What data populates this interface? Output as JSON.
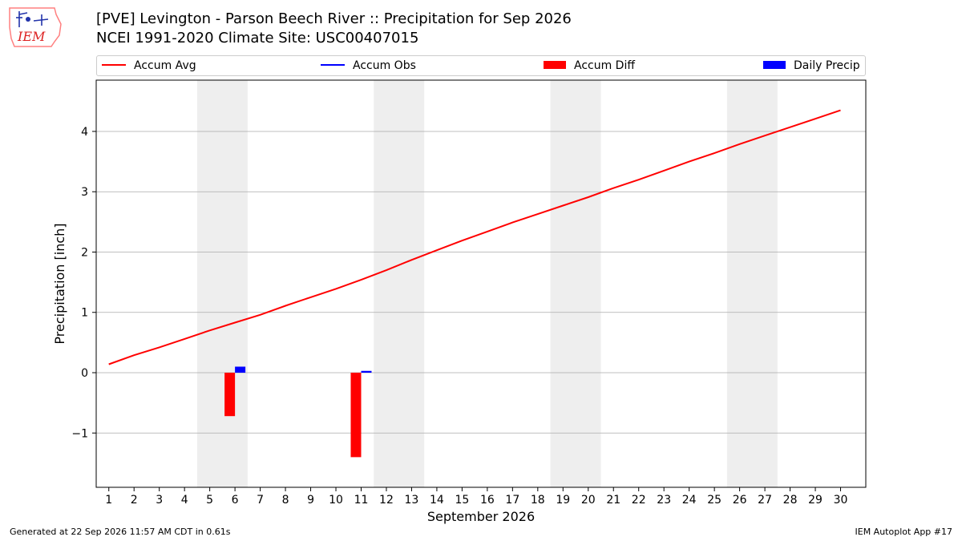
{
  "header": {
    "title_line1": "[PVE] Levington - Parson Beech River :: Precipitation for Sep 2026",
    "title_line2": "NCEI 1991-2020 Climate Site: USC00407015",
    "logo_text": "IEM"
  },
  "footer": {
    "generated": "Generated at 22 Sep 2026 11:57 AM CDT in 0.61s",
    "app": "IEM Autoplot App #17"
  },
  "legend": {
    "accum_avg": "Accum Avg",
    "accum_obs": "Accum Obs",
    "accum_diff": "Accum Diff",
    "daily_precip": "Daily Precip"
  },
  "colors": {
    "accum_avg": "#ff0000",
    "accum_obs": "#0000ff",
    "accum_diff": "#ff0000",
    "daily_precip": "#0000ff",
    "weekend_shade": "#eeeeee",
    "grid": "#aaaaaa"
  },
  "chart_data": {
    "type": "bar",
    "xlabel": "September 2026",
    "ylabel": "Precipitation [inch]",
    "xlim": [
      0.5,
      31
    ],
    "ylim": [
      -1.9,
      4.85
    ],
    "yticks": [
      -1,
      0,
      1,
      2,
      3,
      4
    ],
    "ytick_labels": [
      "−1",
      "0",
      "1",
      "2",
      "3",
      "4"
    ],
    "grid": "horizontal",
    "legend_position": "top",
    "days": [
      1,
      2,
      3,
      4,
      5,
      6,
      7,
      8,
      9,
      10,
      11,
      12,
      13,
      14,
      15,
      16,
      17,
      18,
      19,
      20,
      21,
      22,
      23,
      24,
      25,
      26,
      27,
      28,
      29,
      30
    ],
    "weekend_spans": [
      [
        5,
        6
      ],
      [
        12,
        13
      ],
      [
        19,
        20
      ],
      [
        26,
        27
      ]
    ],
    "series": [
      {
        "name": "Accum Avg",
        "kind": "line",
        "values": [
          0.14,
          0.29,
          0.42,
          0.56,
          0.7,
          0.83,
          0.96,
          1.11,
          1.25,
          1.39,
          1.54,
          1.7,
          1.87,
          2.03,
          2.19,
          2.34,
          2.49,
          2.63,
          2.77,
          2.91,
          3.06,
          3.2,
          3.35,
          3.5,
          3.64,
          3.79,
          3.93,
          4.07,
          4.21,
          4.35
        ]
      },
      {
        "name": "Accum Obs",
        "kind": "line",
        "values": []
      },
      {
        "name": "Accum Diff",
        "kind": "bar",
        "points": [
          [
            6,
            -0.72
          ],
          [
            11,
            -1.4
          ]
        ]
      },
      {
        "name": "Daily Precip",
        "kind": "bar",
        "points": [
          [
            6,
            0.1
          ],
          [
            11,
            0.03
          ]
        ]
      }
    ]
  }
}
